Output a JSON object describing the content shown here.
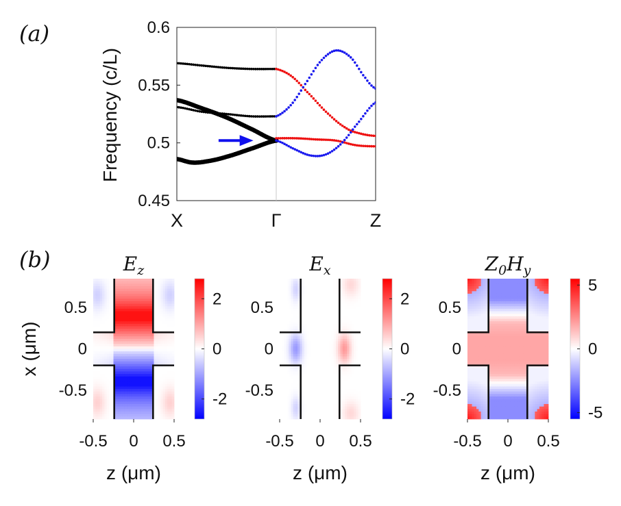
{
  "panel_labels": {
    "a": "(a)",
    "b": "(b)"
  },
  "chart_data": [
    {
      "type": "scatter",
      "id": "band_structure",
      "title": "",
      "ylabel": "Frequency (c/L)",
      "xlabel": "",
      "x_ticks": [
        "X",
        "Γ",
        "Z"
      ],
      "y_ticks": [
        "0.6",
        "0.55",
        "0.5",
        "0.45"
      ],
      "y_tick_values": [
        0.6,
        0.55,
        0.5,
        0.45
      ],
      "ylim": [
        0.45,
        0.6
      ],
      "xlim": [
        0,
        2
      ],
      "annotation": "blue arrow pointing to degeneracy at Γ, f ≈ 0.502",
      "colors": {
        "black": "#000000",
        "red": "#ee1111",
        "blue": "#1b1bee",
        "arrow": "#1010ee"
      },
      "series": [
        {
          "name": "X-Γ band 1",
          "color": "black",
          "size": "large",
          "x": [
            0,
            0.25,
            0.5,
            0.75,
            1.0
          ],
          "y": [
            0.537,
            0.53,
            0.522,
            0.512,
            0.502
          ]
        },
        {
          "name": "X-Γ band 2",
          "color": "black",
          "size": "large",
          "x": [
            0,
            0.15,
            0.3,
            0.5,
            0.75,
            1.0
          ],
          "y": [
            0.486,
            0.483,
            0.484,
            0.488,
            0.495,
            0.502
          ]
        },
        {
          "name": "X-Γ band 3",
          "color": "black",
          "size": "small",
          "x": [
            0,
            0.25,
            0.5,
            0.75,
            1.0
          ],
          "y": [
            0.531,
            0.527,
            0.525,
            0.523,
            0.523
          ]
        },
        {
          "name": "X-Γ band 4",
          "color": "black",
          "size": "small",
          "x": [
            0,
            0.25,
            0.5,
            0.75,
            1.0
          ],
          "y": [
            0.569,
            0.567,
            0.565,
            0.564,
            0.564
          ]
        },
        {
          "name": "Γ-Z red upper",
          "color": "red",
          "size": "small",
          "x": [
            1.0,
            1.15,
            1.3,
            1.5,
            1.7,
            1.85,
            2.0
          ],
          "y": [
            0.564,
            0.558,
            0.545,
            0.527,
            0.513,
            0.508,
            0.506
          ]
        },
        {
          "name": "Γ-Z red flat",
          "color": "red",
          "size": "small",
          "x": [
            1.0,
            1.2,
            1.4,
            1.6,
            1.8,
            2.0
          ],
          "y": [
            0.504,
            0.504,
            0.503,
            0.502,
            0.498,
            0.497
          ]
        },
        {
          "name": "Γ-Z blue upper",
          "color": "blue",
          "size": "small",
          "x": [
            1.0,
            1.15,
            1.3,
            1.45,
            1.6,
            1.75,
            1.9,
            2.0
          ],
          "y": [
            0.523,
            0.533,
            0.552,
            0.571,
            0.58,
            0.574,
            0.556,
            0.547
          ]
        },
        {
          "name": "Γ-Z blue lower",
          "color": "blue",
          "size": "small",
          "x": [
            1.0,
            1.2,
            1.35,
            1.5,
            1.65,
            1.8,
            2.0
          ],
          "y": [
            0.502,
            0.494,
            0.489,
            0.49,
            0.499,
            0.515,
            0.535
          ]
        }
      ]
    },
    {
      "type": "heatmap",
      "id": "Ez",
      "title_main": "E",
      "title_sub": "z",
      "xlabel": "z (μm)",
      "ylabel": "x (μm)",
      "xlim": [
        -0.5,
        0.5
      ],
      "ylim": [
        -0.85,
        0.85
      ],
      "x_ticks": [
        "-0.5",
        "0",
        "0.5"
      ],
      "x_tick_values": [
        -0.5,
        0,
        0.5
      ],
      "y_ticks": [
        "0.5",
        "0",
        "-0.5"
      ],
      "y_tick_values": [
        0.5,
        0,
        -0.5
      ],
      "colorbar": {
        "ticks": [
          "2",
          "0",
          "-2"
        ],
        "tick_values": [
          2,
          0,
          -2
        ],
        "range": [
          -2.8,
          2.8
        ]
      }
    },
    {
      "type": "heatmap",
      "id": "Ex",
      "title_main": "E",
      "title_sub": "x",
      "xlabel": "z (μm)",
      "ylabel": "",
      "xlim": [
        -0.5,
        0.5
      ],
      "ylim": [
        -0.85,
        0.85
      ],
      "x_ticks": [
        "-0.5",
        "0",
        "0.5"
      ],
      "x_tick_values": [
        -0.5,
        0,
        0.5
      ],
      "y_ticks": [
        "0.5",
        "0",
        "-0.5"
      ],
      "y_tick_values": [
        0.5,
        0,
        -0.5
      ],
      "colorbar": {
        "ticks": [
          "2",
          "0",
          "-2"
        ],
        "tick_values": [
          2,
          0,
          -2
        ],
        "range": [
          -2.8,
          2.8
        ]
      }
    },
    {
      "type": "heatmap",
      "id": "Z0Hy",
      "title_main": "Z",
      "title_sub": "0",
      "title_main2": "H",
      "title_sub2": "y",
      "xlabel": "z (μm)",
      "ylabel": "",
      "xlim": [
        -0.5,
        0.5
      ],
      "ylim": [
        -0.85,
        0.85
      ],
      "x_ticks": [
        "-0.5",
        "0",
        "0.5"
      ],
      "x_tick_values": [
        -0.5,
        0,
        0.5
      ],
      "y_ticks": [
        "0.5",
        "0",
        "-0.5"
      ],
      "y_tick_values": [
        0.5,
        0,
        -0.5
      ],
      "colorbar": {
        "ticks": [
          "5",
          "0",
          "-5"
        ],
        "tick_values": [
          5,
          0,
          -5
        ],
        "range": [
          -5.5,
          5.5
        ]
      }
    }
  ]
}
